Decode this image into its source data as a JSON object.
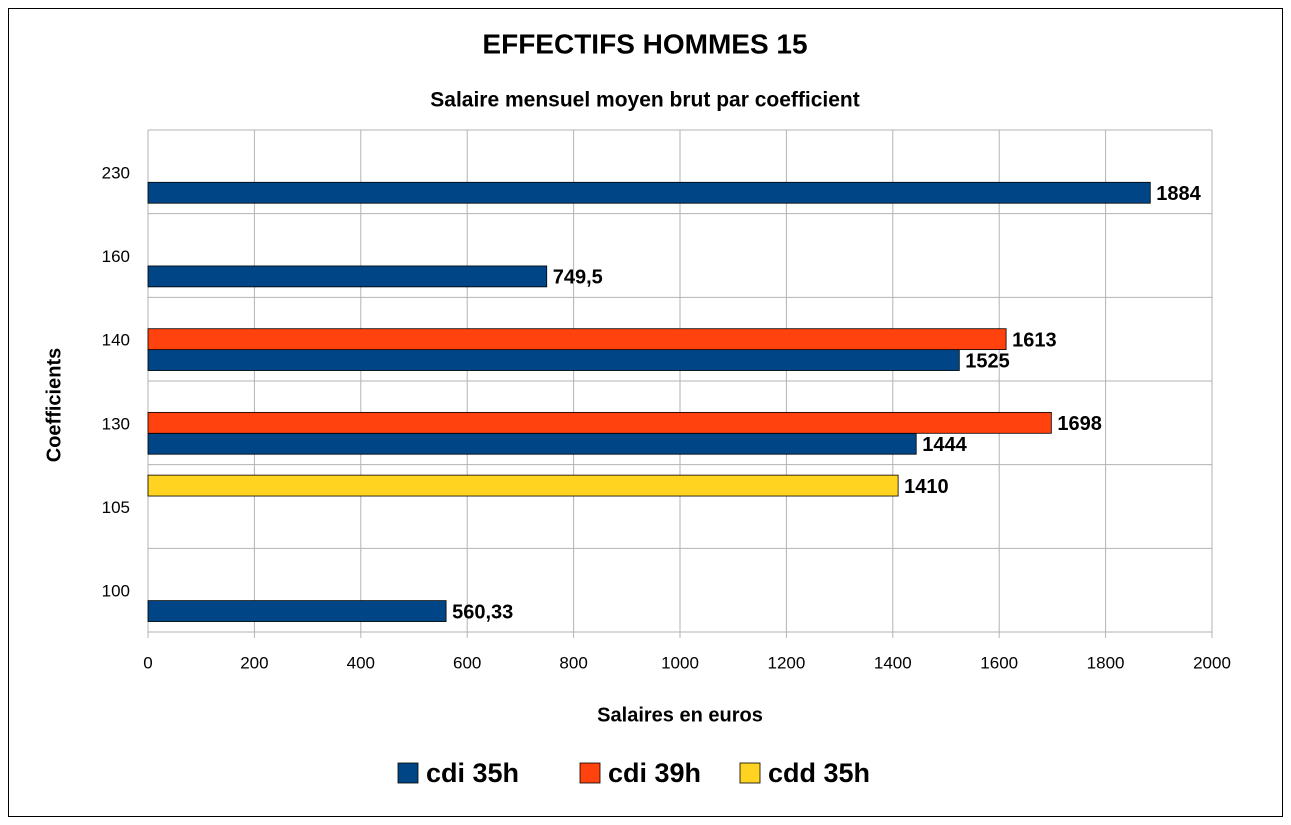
{
  "chart_data": {
    "type": "hbar",
    "title": "EFFECTIFS HOMMES 15",
    "subtitle": "Salaire mensuel moyen brut par coefficient",
    "x_label": "Salaires en euros",
    "y_label": "Coefficients",
    "categories": [
      "100",
      "105",
      "130",
      "140",
      "160",
      "230"
    ],
    "series": [
      {
        "name": "cdi 35h",
        "color": "#004586",
        "values": [
          560.33,
          null,
          1444,
          1525,
          749.5,
          1884
        ],
        "value_labels": [
          "560,33",
          null,
          "1444",
          "1525",
          "749,5",
          "1884"
        ]
      },
      {
        "name": "cdi 39h",
        "color": "#ff420e",
        "values": [
          null,
          null,
          1698,
          1613,
          null,
          null
        ],
        "value_labels": [
          null,
          null,
          "1698",
          "1613",
          null,
          null
        ]
      },
      {
        "name": "cdd 35h",
        "color": "#ffd320",
        "values": [
          null,
          1410,
          null,
          null,
          null,
          null
        ],
        "value_labels": [
          null,
          "1410",
          null,
          null,
          null,
          null
        ]
      }
    ],
    "xlim": [
      0,
      2000
    ],
    "xticks": [
      0,
      200,
      400,
      600,
      800,
      1000,
      1200,
      1400,
      1600,
      1800,
      2000
    ],
    "grid": true,
    "legend": "bottom"
  }
}
